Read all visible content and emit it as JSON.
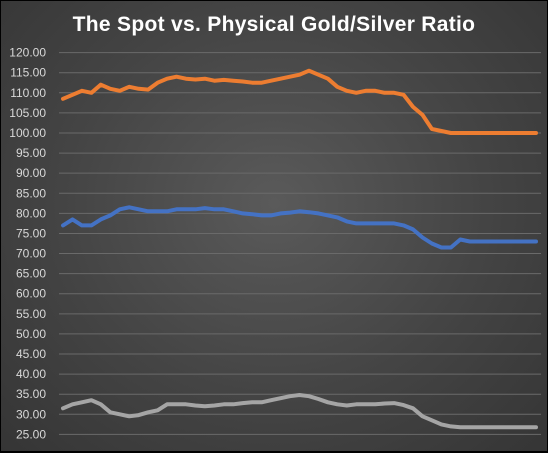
{
  "chart_data": {
    "type": "line",
    "title": "The Spot vs. Physical Gold/Silver Ratio",
    "xlabel": "",
    "ylabel": "",
    "ylim": [
      20,
      125
    ],
    "ytick_step": 5,
    "grid": true,
    "legend": "none",
    "x": [
      0,
      4,
      8,
      12,
      16,
      20,
      24,
      28,
      32,
      36,
      40,
      44,
      48,
      52,
      56,
      60,
      64,
      68,
      72,
      76,
      80,
      84,
      88,
      92,
      96,
      100,
      104,
      108,
      112,
      116,
      120,
      124,
      128,
      132,
      136,
      140,
      144,
      148,
      152,
      156,
      160,
      164,
      168,
      172,
      176,
      180,
      184,
      188,
      192,
      196,
      200
    ],
    "series": [
      {
        "color": "#ed7d31",
        "values": [
          108.5,
          109.5,
          110.5,
          110,
          112,
          111,
          110.5,
          111.5,
          111,
          110.8,
          112.5,
          113.5,
          114,
          113.5,
          113.3,
          113.5,
          113,
          113.2,
          113,
          112.8,
          112.5,
          112.5,
          113,
          113.5,
          114,
          114.5,
          115.5,
          114.5,
          113.5,
          111.5,
          110.5,
          110,
          110.5,
          110.5,
          110,
          110,
          109.5,
          106.5,
          104.5,
          101,
          100.5,
          100,
          100,
          100,
          100,
          100,
          100,
          100,
          100,
          100,
          100
        ]
      },
      {
        "color": "#4472c4",
        "values": [
          77,
          78.5,
          77,
          77,
          78.5,
          79.5,
          81,
          81.5,
          81,
          80.5,
          80.5,
          80.5,
          81,
          81,
          81,
          81.3,
          81,
          81,
          80.5,
          80,
          79.8,
          79.5,
          79.5,
          80,
          80.2,
          80.5,
          80.3,
          80,
          79.5,
          79,
          78,
          77.5,
          77.5,
          77.5,
          77.5,
          77.5,
          77,
          76,
          74,
          72.5,
          71.5,
          71.5,
          73.5,
          73,
          73,
          73,
          73,
          73,
          73,
          73,
          73
        ]
      },
      {
        "color": "#a5a5a5",
        "values": [
          31.5,
          32.5,
          33,
          33.5,
          32.5,
          30.5,
          30,
          29.5,
          29.8,
          30.5,
          31,
          32.5,
          32.5,
          32.5,
          32.2,
          32,
          32.2,
          32.5,
          32.5,
          32.8,
          33,
          33,
          33.5,
          34,
          34.5,
          34.8,
          34.5,
          33.8,
          33,
          32.5,
          32.2,
          32.5,
          32.5,
          32.5,
          32.7,
          32.8,
          32.3,
          31.5,
          29.5,
          28.5,
          27.5,
          27,
          26.8,
          26.8,
          26.8,
          26.8,
          26.8,
          26.8,
          26.8,
          26.8,
          26.8
        ]
      }
    ]
  }
}
